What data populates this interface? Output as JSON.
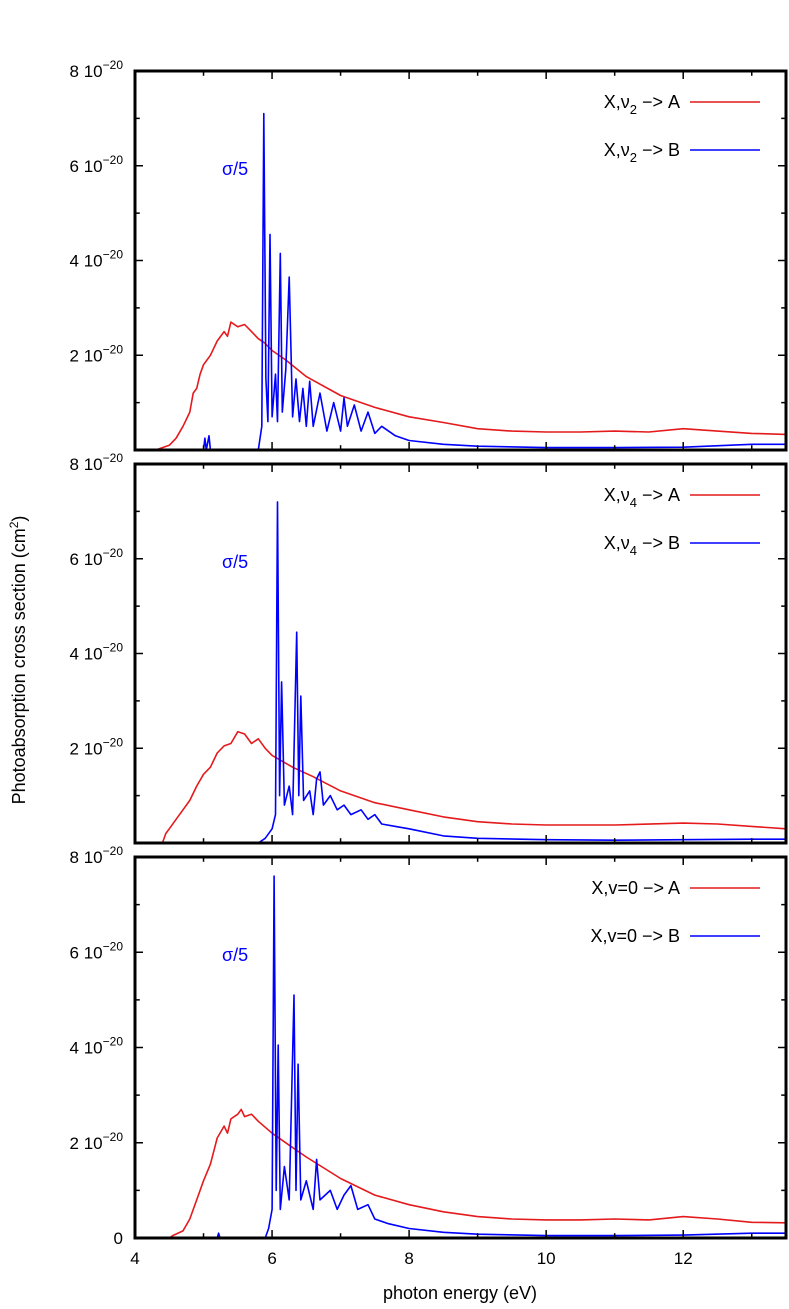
{
  "ylabel": "Photoabsorption cross section (cm",
  "ylabel_sup": "2",
  "ylabel_close": ")",
  "xlabel": "photon energy (eV)",
  "x_ticks": [
    {
      "value": 4,
      "label": "4"
    },
    {
      "value": 6,
      "label": "6"
    },
    {
      "value": 8,
      "label": "8"
    },
    {
      "value": 10,
      "label": "10"
    },
    {
      "value": 12,
      "label": "12"
    }
  ],
  "y_ticks": [
    {
      "value": 0,
      "mantissa": "0",
      "exp": ""
    },
    {
      "value": 2e-20,
      "mantissa": "2 10",
      "exp": "−20"
    },
    {
      "value": 4e-20,
      "mantissa": "4 10",
      "exp": "−20"
    },
    {
      "value": 6e-20,
      "mantissa": "6 10",
      "exp": "−20"
    },
    {
      "value": 8e-20,
      "mantissa": "8 10",
      "exp": "−20"
    }
  ],
  "colors": {
    "A": "#e41a1c",
    "B": "#0000ff",
    "frame": "#000000"
  },
  "chart_data": [
    {
      "type": "line",
      "panel": "top",
      "xlim": [
        4,
        13.5
      ],
      "ylim": [
        0,
        8e-20
      ],
      "annotation": "σ/5",
      "grid": false,
      "legend_position": "top-right",
      "series": [
        {
          "name": "X,ν2 −> A",
          "legend_main": "X,ν",
          "legend_sub": "2",
          "legend_tail": " −> A",
          "color": "#e41a1c",
          "points": [
            [
              4,
              0
            ],
            [
              4.3,
              0
            ],
            [
              4.5,
              1e-21
            ],
            [
              4.6,
              2.5e-21
            ],
            [
              4.7,
              5e-21
            ],
            [
              4.8,
              8e-21
            ],
            [
              4.85,
              1.2e-20
            ],
            [
              4.9,
              1.3e-20
            ],
            [
              4.95,
              1.6e-20
            ],
            [
              5.0,
              1.8e-20
            ],
            [
              5.05,
              1.9e-20
            ],
            [
              5.1,
              2e-20
            ],
            [
              5.2,
              2.3e-20
            ],
            [
              5.3,
              2.5e-20
            ],
            [
              5.35,
              2.4e-20
            ],
            [
              5.4,
              2.7e-20
            ],
            [
              5.5,
              2.6e-20
            ],
            [
              5.6,
              2.65e-20
            ],
            [
              5.7,
              2.5e-20
            ],
            [
              5.8,
              2.35e-20
            ],
            [
              5.9,
              2.25e-20
            ],
            [
              6.0,
              2.1e-20
            ],
            [
              6.2,
              1.9e-20
            ],
            [
              6.5,
              1.55e-20
            ],
            [
              7.0,
              1.15e-20
            ],
            [
              7.5,
              9e-21
            ],
            [
              8.0,
              7e-21
            ],
            [
              8.5,
              5.8e-21
            ],
            [
              9.0,
              4.5e-21
            ],
            [
              9.5,
              4e-21
            ],
            [
              10,
              3.8e-21
            ],
            [
              10.5,
              3.8e-21
            ],
            [
              11,
              4e-21
            ],
            [
              11.5,
              3.8e-21
            ],
            [
              12,
              4.5e-21
            ],
            [
              12.5,
              4e-21
            ],
            [
              13,
              3.5e-21
            ],
            [
              13.5,
              3.3e-21
            ]
          ]
        },
        {
          "name": "X,ν2 −> B",
          "legend_main": "X,ν",
          "legend_sub": "2",
          "legend_tail": " −> B",
          "color": "#0000ff",
          "points": [
            [
              4,
              0
            ],
            [
              5.0,
              0
            ],
            [
              5.02,
              2.5e-21
            ],
            [
              5.04,
              0
            ],
            [
              5.08,
              3e-21
            ],
            [
              5.1,
              0
            ],
            [
              5.8,
              0
            ],
            [
              5.85,
              5e-21
            ],
            [
              5.88,
              7.1e-20
            ],
            [
              5.91,
              1.5e-20
            ],
            [
              5.94,
              6e-21
            ],
            [
              5.97,
              4.55e-20
            ],
            [
              6.0,
              7e-21
            ],
            [
              6.05,
              1.6e-20
            ],
            [
              6.08,
              6e-21
            ],
            [
              6.12,
              4.15e-20
            ],
            [
              6.15,
              8e-21
            ],
            [
              6.2,
              1.7e-20
            ],
            [
              6.25,
              3.65e-20
            ],
            [
              6.3,
              7e-21
            ],
            [
              6.35,
              1.5e-20
            ],
            [
              6.4,
              6e-21
            ],
            [
              6.45,
              1.3e-20
            ],
            [
              6.5,
              5e-21
            ],
            [
              6.55,
              1.45e-20
            ],
            [
              6.6,
              5e-21
            ],
            [
              6.7,
              1.2e-20
            ],
            [
              6.8,
              4e-21
            ],
            [
              6.9,
              1e-20
            ],
            [
              7.0,
              4e-21
            ],
            [
              7.05,
              1.1e-20
            ],
            [
              7.1,
              5e-21
            ],
            [
              7.2,
              9.5e-21
            ],
            [
              7.3,
              4e-21
            ],
            [
              7.4,
              8e-21
            ],
            [
              7.5,
              3.5e-21
            ],
            [
              7.6,
              5e-21
            ],
            [
              7.8,
              3e-21
            ],
            [
              8.0,
              2e-21
            ],
            [
              8.5,
              1.2e-21
            ],
            [
              9.0,
              8e-22
            ],
            [
              10,
              5e-22
            ],
            [
              11,
              5e-22
            ],
            [
              12,
              6e-22
            ],
            [
              13,
              1.2e-21
            ],
            [
              13.5,
              1.2e-21
            ]
          ]
        }
      ]
    },
    {
      "type": "line",
      "panel": "middle",
      "xlim": [
        4,
        13.5
      ],
      "ylim": [
        0,
        8e-20
      ],
      "annotation": "σ/5",
      "grid": false,
      "legend_position": "top-right",
      "series": [
        {
          "name": "X,ν4 −> A",
          "legend_main": "X,ν",
          "legend_sub": "4",
          "legend_tail": " −> A",
          "color": "#e41a1c",
          "points": [
            [
              4,
              0
            ],
            [
              4.4,
              0
            ],
            [
              4.45,
              2e-21
            ],
            [
              4.5,
              3e-21
            ],
            [
              4.6,
              5e-21
            ],
            [
              4.7,
              7e-21
            ],
            [
              4.8,
              9e-21
            ],
            [
              4.9,
              1.2e-20
            ],
            [
              5.0,
              1.45e-20
            ],
            [
              5.1,
              1.6e-20
            ],
            [
              5.2,
              1.9e-20
            ],
            [
              5.3,
              2.05e-20
            ],
            [
              5.4,
              2.1e-20
            ],
            [
              5.5,
              2.35e-20
            ],
            [
              5.6,
              2.3e-20
            ],
            [
              5.7,
              2.1e-20
            ],
            [
              5.8,
              2.2e-20
            ],
            [
              5.9,
              2e-20
            ],
            [
              6.0,
              1.85e-20
            ],
            [
              6.3,
              1.6e-20
            ],
            [
              6.6,
              1.4e-20
            ],
            [
              7.0,
              1.1e-20
            ],
            [
              7.5,
              8.5e-21
            ],
            [
              8.0,
              7e-21
            ],
            [
              8.5,
              5.5e-21
            ],
            [
              9.0,
              4.5e-21
            ],
            [
              9.5,
              4e-21
            ],
            [
              10,
              3.8e-21
            ],
            [
              11,
              3.8e-21
            ],
            [
              12,
              4.2e-21
            ],
            [
              12.5,
              4e-21
            ],
            [
              13,
              3.5e-21
            ],
            [
              13.5,
              3e-21
            ]
          ]
        },
        {
          "name": "X,ν4 −> B",
          "legend_main": "X,ν",
          "legend_sub": "4",
          "legend_tail": " −> B",
          "color": "#0000ff",
          "points": [
            [
              4,
              0
            ],
            [
              5.8,
              0
            ],
            [
              5.9,
              1e-21
            ],
            [
              6.0,
              3e-21
            ],
            [
              6.05,
              6e-21
            ],
            [
              6.08,
              7.2e-20
            ],
            [
              6.11,
              1e-20
            ],
            [
              6.14,
              3.4e-20
            ],
            [
              6.18,
              8e-21
            ],
            [
              6.25,
              1.2e-20
            ],
            [
              6.3,
              6e-21
            ],
            [
              6.36,
              4.45e-20
            ],
            [
              6.39,
              1e-20
            ],
            [
              6.42,
              3.1e-20
            ],
            [
              6.46,
              9e-21
            ],
            [
              6.55,
              1.1e-20
            ],
            [
              6.6,
              6e-21
            ],
            [
              6.65,
              1.35e-20
            ],
            [
              6.7,
              1.5e-20
            ],
            [
              6.75,
              8e-21
            ],
            [
              6.85,
              1e-20
            ],
            [
              6.95,
              7e-21
            ],
            [
              7.05,
              8e-21
            ],
            [
              7.15,
              6e-21
            ],
            [
              7.3,
              7e-21
            ],
            [
              7.4,
              5e-21
            ],
            [
              7.5,
              6e-21
            ],
            [
              7.6,
              4e-21
            ],
            [
              7.8,
              3.5e-21
            ],
            [
              8.0,
              3e-21
            ],
            [
              8.5,
              1.5e-21
            ],
            [
              9.0,
              1e-21
            ],
            [
              10,
              7e-22
            ],
            [
              11,
              6e-22
            ],
            [
              12,
              7e-22
            ],
            [
              13,
              8e-22
            ],
            [
              13.5,
              8e-22
            ]
          ]
        }
      ]
    },
    {
      "type": "line",
      "panel": "bottom",
      "xlim": [
        4,
        13.5
      ],
      "ylim": [
        0,
        8e-20
      ],
      "annotation": "σ/5",
      "grid": false,
      "legend_position": "top-right",
      "series": [
        {
          "name": "X,v=0 −> A",
          "legend_main": "X,v=0",
          "legend_sub": "",
          "legend_tail": " −> A",
          "color": "#e41a1c",
          "points": [
            [
              4,
              0
            ],
            [
              4.5,
              0
            ],
            [
              4.55,
              5e-22
            ],
            [
              4.7,
              1.5e-21
            ],
            [
              4.8,
              4e-21
            ],
            [
              4.9,
              8e-21
            ],
            [
              5.0,
              1.2e-20
            ],
            [
              5.1,
              1.55e-20
            ],
            [
              5.2,
              2.1e-20
            ],
            [
              5.3,
              2.35e-20
            ],
            [
              5.35,
              2.2e-20
            ],
            [
              5.4,
              2.5e-20
            ],
            [
              5.5,
              2.6e-20
            ],
            [
              5.55,
              2.7e-20
            ],
            [
              5.6,
              2.55e-20
            ],
            [
              5.7,
              2.6e-20
            ],
            [
              5.8,
              2.45e-20
            ],
            [
              6.0,
              2.2e-20
            ],
            [
              6.2,
              2e-20
            ],
            [
              6.5,
              1.7e-20
            ],
            [
              7.0,
              1.25e-20
            ],
            [
              7.5,
              9e-21
            ],
            [
              8.0,
              7e-21
            ],
            [
              8.5,
              5.5e-21
            ],
            [
              9.0,
              4.5e-21
            ],
            [
              9.5,
              4e-21
            ],
            [
              10,
              3.8e-21
            ],
            [
              10.5,
              3.8e-21
            ],
            [
              11,
              4e-21
            ],
            [
              11.5,
              3.8e-21
            ],
            [
              12,
              4.5e-21
            ],
            [
              12.5,
              4e-21
            ],
            [
              13,
              3.3e-21
            ],
            [
              13.5,
              3.2e-21
            ]
          ]
        },
        {
          "name": "X,v=0 −> B",
          "legend_main": "X,v=0",
          "legend_sub": "",
          "legend_tail": " −> B",
          "color": "#0000ff",
          "points": [
            [
              4,
              0
            ],
            [
              5.2,
              0
            ],
            [
              5.22,
              1e-21
            ],
            [
              5.24,
              0
            ],
            [
              5.9,
              0
            ],
            [
              5.95,
              2e-21
            ],
            [
              6.0,
              6e-21
            ],
            [
              6.03,
              7.6e-20
            ],
            [
              6.06,
              1e-20
            ],
            [
              6.09,
              4.05e-20
            ],
            [
              6.12,
              6e-21
            ],
            [
              6.18,
              1.5e-20
            ],
            [
              6.25,
              8e-21
            ],
            [
              6.32,
              5.1e-20
            ],
            [
              6.35,
              1e-20
            ],
            [
              6.38,
              3.65e-20
            ],
            [
              6.42,
              8e-21
            ],
            [
              6.5,
              1.2e-20
            ],
            [
              6.6,
              6e-21
            ],
            [
              6.65,
              1.65e-20
            ],
            [
              6.7,
              8e-21
            ],
            [
              6.85,
              1e-20
            ],
            [
              6.95,
              6e-21
            ],
            [
              7.05,
              9e-21
            ],
            [
              7.15,
              1.1e-20
            ],
            [
              7.25,
              6e-21
            ],
            [
              7.4,
              7e-21
            ],
            [
              7.5,
              4e-21
            ],
            [
              7.7,
              3e-21
            ],
            [
              8.0,
              2e-21
            ],
            [
              8.5,
              1.2e-21
            ],
            [
              9.0,
              8e-22
            ],
            [
              10,
              5e-22
            ],
            [
              11,
              5e-22
            ],
            [
              12,
              6e-22
            ],
            [
              13,
              1e-21
            ],
            [
              13.5,
              1e-21
            ]
          ]
        }
      ]
    }
  ]
}
